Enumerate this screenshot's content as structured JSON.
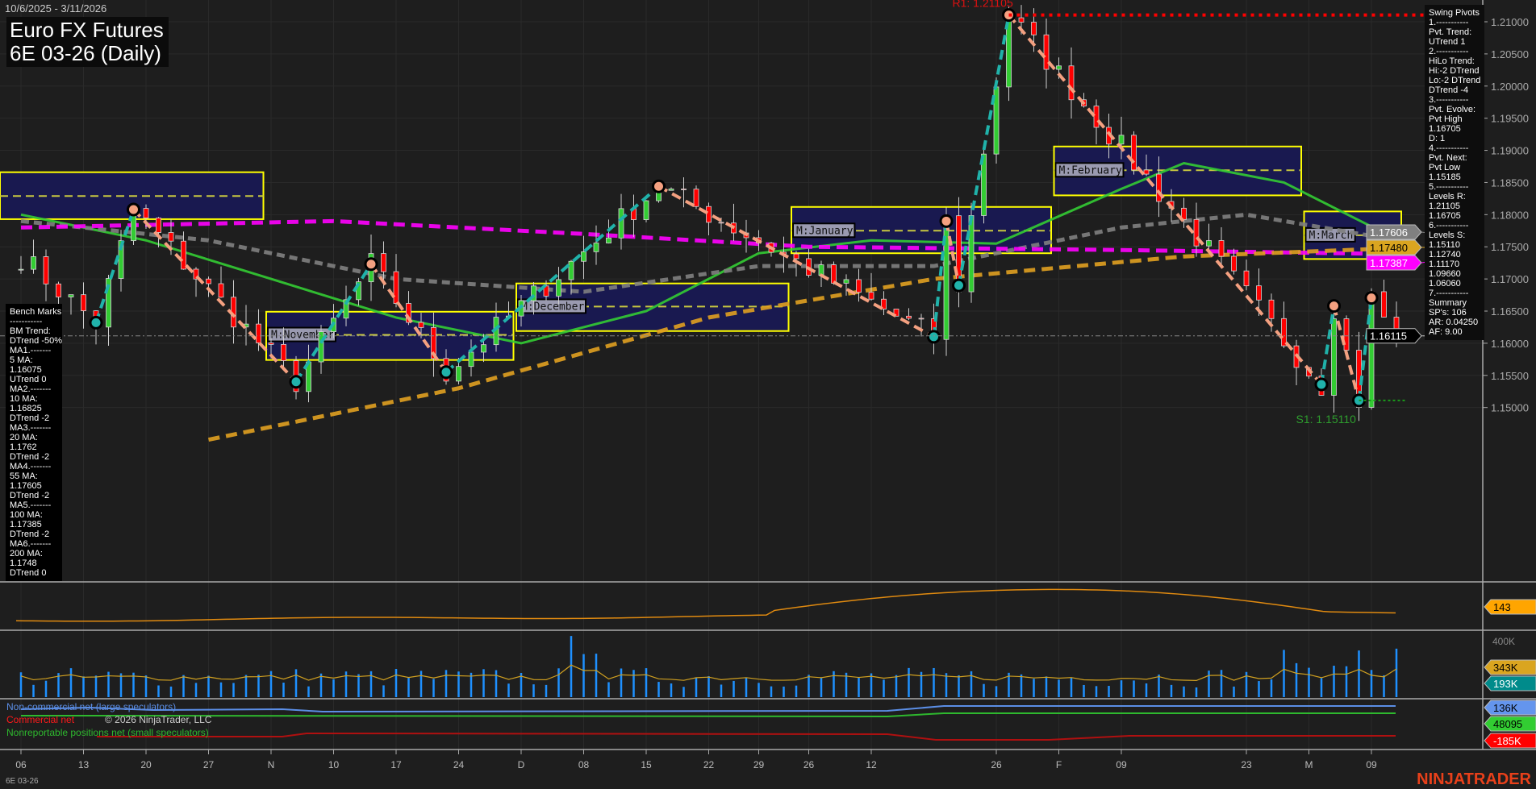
{
  "header": {
    "date_range": "10/6/2025 - 3/11/2026",
    "title": "Euro FX Futures",
    "subtitle": "6E 03-26 (Daily)"
  },
  "swing_pivots": {
    "lines": [
      "Swing Pivots",
      "1.-----------",
      "Pvt. Trend:",
      "UTrend 1",
      "2.-----------",
      "HiLo Trend:",
      "Hi:-2 DTrend",
      "Lo:-2 DTrend",
      "DTrend -4",
      "3.-----------",
      "Pvt. Evolve:",
      "Pvt High",
      "1.16705",
      "D: 1",
      "4.-----------",
      "Pvt. Next:",
      "Pvt Low",
      "1.15185",
      "5.-----------",
      "Levels R:",
      "1.21105",
      "1.16705",
      "6.-----------",
      "Levels S:",
      "1.15110",
      "1.12740",
      "1.11170",
      "1.09660",
      "1.06060",
      "7.-----------",
      "Summary",
      "SP's: 106",
      "AR: 0.04250",
      "AF: 9.00"
    ]
  },
  "bench_marks": {
    "lines": [
      "Bench Marks",
      "-----------",
      "BM Trend:",
      "DTrend -50%",
      "MA1.-------",
      "5 MA:",
      "1.16075",
      "UTrend 0",
      "MA2.-------",
      "10 MA:",
      "1.16825",
      "DTrend -2",
      "MA3.-------",
      "20 MA:",
      "1.1762",
      "DTrend -2",
      "MA4.-------",
      "55 MA:",
      "1.17605",
      "DTrend -2",
      "MA5.-------",
      "100 MA:",
      "1.17385",
      "DTrend -2",
      "MA6.-------",
      "200 MA:",
      "1.1748",
      "DTrend 0"
    ]
  },
  "legend": {
    "noncommercial": "Non-commercial net (large speculators)",
    "commercial": "Commercial net",
    "nonreportable": "Nonreportable positions net (small speculators)",
    "copyright": "© 2026 NinjaTrader, LLC"
  },
  "footer": {
    "symbol": "6E 03-26",
    "logo": "NINJATRADER"
  },
  "colors": {
    "background": "#1e1e1e",
    "up": "#33cc33",
    "down": "#ff0000",
    "zigzag_up": "#20b2aa",
    "zigzag_down": "#f4a080",
    "ma20": "#33cc33",
    "ma55": "#808080",
    "ma100": "#ff00ff",
    "ma200": "#e0a020",
    "month_box": "#191950",
    "month_border": "#ffff00",
    "volume": "#1e90ff"
  },
  "chart_data": {
    "type": "candlestick",
    "ylim": [
      1.147,
      1.2145
    ],
    "y_ticks": [
      1.15,
      1.155,
      1.16,
      1.165,
      1.17,
      1.175,
      1.18,
      1.185,
      1.19,
      1.195,
      1.2,
      1.205,
      1.21
    ],
    "x_ticks": [
      {
        "label": "06",
        "date": "2025-10-06"
      },
      {
        "label": "13",
        "date": "2025-10-13"
      },
      {
        "label": "20",
        "date": "2025-10-20"
      },
      {
        "label": "27",
        "date": "2025-10-27"
      },
      {
        "label": "N",
        "date": "2025-11-03"
      },
      {
        "label": "10",
        "date": "2025-11-10"
      },
      {
        "label": "17",
        "date": "2025-11-17"
      },
      {
        "label": "24",
        "date": "2025-11-24"
      },
      {
        "label": "D",
        "date": "2025-12-01"
      },
      {
        "label": "08",
        "date": "2025-12-08"
      },
      {
        "label": "15",
        "date": "2025-12-15"
      },
      {
        "label": "22",
        "date": "2025-12-22"
      },
      {
        "label": "29",
        "date": "2025-12-29"
      },
      {
        "label": "26",
        "date": "2026-01-05"
      },
      {
        "label": "12",
        "date": "2026-01-12"
      },
      {
        "label": "26",
        "date": "2026-01-26"
      },
      {
        "label": "F",
        "date": "2026-02-02"
      },
      {
        "label": "09",
        "date": "2026-02-09"
      },
      {
        "label": "23",
        "date": "2026-02-23"
      },
      {
        "label": "M",
        "date": "2026-03-02"
      },
      {
        "label": "09",
        "date": "2026-03-09"
      }
    ],
    "swing_pivots": [
      {
        "date": "2025-10-06",
        "price": 1.1735
      },
      {
        "date": "2025-10-14",
        "price": 1.1632
      },
      {
        "date": "2025-10-17",
        "price": 1.1808
      },
      {
        "date": "2025-11-05",
        "price": 1.154
      },
      {
        "date": "2025-11-13",
        "price": 1.1723
      },
      {
        "date": "2025-11-21",
        "price": 1.1555
      },
      {
        "date": "2025-12-16",
        "price": 1.1844
      },
      {
        "date": "2026-01-19",
        "price": 1.161
      },
      {
        "date": "2026-01-20",
        "price": 1.179
      },
      {
        "date": "2026-01-21",
        "price": 1.169
      },
      {
        "date": "2026-01-27",
        "price": 1.21105
      },
      {
        "date": "2026-03-03",
        "price": 1.1536
      },
      {
        "date": "2026-03-04",
        "price": 1.1658
      },
      {
        "date": "2026-03-06",
        "price": 1.1511
      },
      {
        "date": "2026-03-09",
        "price": 1.16705
      },
      {
        "date": "2026-03-11",
        "price": 1.16115
      }
    ],
    "monthly_boxes": [
      {
        "label": "",
        "start": "2025-10-01",
        "end": "2025-10-31",
        "high": 1.1866,
        "low": 1.1793,
        "mid": 1.1829
      },
      {
        "label": "M:November",
        "start": "2025-11-03",
        "end": "2025-11-28",
        "high": 1.1649,
        "low": 1.1574,
        "mid": 1.1613
      },
      {
        "label": "M:December",
        "start": "2025-12-01",
        "end": "2025-12-31",
        "high": 1.1693,
        "low": 1.1619,
        "mid": 1.1657
      },
      {
        "label": "M:January",
        "start": "2026-01-02",
        "end": "2026-01-30",
        "high": 1.1812,
        "low": 1.174,
        "mid": 1.1775
      },
      {
        "label": "M:February",
        "start": "2026-02-02",
        "end": "2026-02-27",
        "high": 1.1906,
        "low": 1.183,
        "mid": 1.1869
      },
      {
        "label": "M:March",
        "start": "2026-03-02",
        "end": "2026-03-11",
        "high": 1.1805,
        "low": 1.1731,
        "mid": 1.1768
      }
    ],
    "moving_averages": [
      {
        "name": "20 MA",
        "color": "#33cc33",
        "dash": "",
        "points": [
          [
            "2025-10-06",
            1.18
          ],
          [
            "2025-10-20",
            1.176
          ],
          [
            "2025-11-03",
            1.17
          ],
          [
            "2025-11-17",
            1.164
          ],
          [
            "2025-12-01",
            1.16
          ],
          [
            "2025-12-15",
            1.165
          ],
          [
            "2025-12-29",
            1.174
          ],
          [
            "2026-01-12",
            1.176
          ],
          [
            "2026-01-26",
            1.1755
          ],
          [
            "2026-02-09",
            1.184
          ],
          [
            "2026-02-16",
            1.188
          ],
          [
            "2026-02-26",
            1.185
          ],
          [
            "2026-03-11",
            1.1762
          ]
        ]
      },
      {
        "name": "55 MA",
        "color": "#808080",
        "dash": "10,6",
        "points": [
          [
            "2025-10-06",
            1.179
          ],
          [
            "2025-10-27",
            1.176
          ],
          [
            "2025-11-17",
            1.17
          ],
          [
            "2025-12-08",
            1.168
          ],
          [
            "2025-12-29",
            1.172
          ],
          [
            "2026-01-19",
            1.172
          ],
          [
            "2026-02-09",
            1.178
          ],
          [
            "2026-02-23",
            1.18
          ],
          [
            "2026-03-11",
            1.17605
          ]
        ]
      },
      {
        "name": "100 MA",
        "color": "#ff00ff",
        "dash": "14,8",
        "points": [
          [
            "2025-10-06",
            1.178
          ],
          [
            "2025-11-10",
            1.179
          ],
          [
            "2025-12-08",
            1.177
          ],
          [
            "2026-01-05",
            1.175
          ],
          [
            "2026-02-09",
            1.1745
          ],
          [
            "2026-03-11",
            1.17387
          ]
        ]
      },
      {
        "name": "200 MA",
        "color": "#e0a020",
        "dash": "14,8",
        "points": [
          [
            "2025-10-27",
            1.145
          ],
          [
            "2025-11-24",
            1.153
          ],
          [
            "2025-12-22",
            1.164
          ],
          [
            "2026-01-19",
            1.17
          ],
          [
            "2026-02-16",
            1.1735
          ],
          [
            "2026-03-11",
            1.1748
          ]
        ]
      }
    ],
    "resistance": {
      "label": "R1: 1.21105",
      "price": 1.21105,
      "from": "2026-01-27"
    },
    "support": {
      "label": "S1: 1.15110",
      "price": 1.1511,
      "from": "2026-03-06"
    },
    "axis_markers": [
      {
        "value": "1.17606",
        "color": "#808080",
        "text": "#ffffff"
      },
      {
        "value": "1.17480",
        "color": "#daa520",
        "text": "#000000"
      },
      {
        "value": "1.17387",
        "color": "#ff00ff",
        "text": "#ffffff"
      },
      {
        "value": "1.16115",
        "color": "#000000",
        "text": "#ffffff"
      }
    ],
    "panels": [
      {
        "name": "indicator",
        "marker": "143",
        "marker_color": "#ffa500"
      },
      {
        "name": "volume",
        "tick": "400K",
        "markers": [
          {
            "value": "343K",
            "color": "#daa520",
            "text": "#000"
          },
          {
            "value": "193K",
            "color": "#008b8b",
            "text": "#fff"
          }
        ]
      },
      {
        "name": "cot",
        "markers": [
          {
            "value": "136K",
            "color": "#6495ed",
            "text": "#000"
          },
          {
            "value": "48095",
            "color": "#32cd32",
            "text": "#000"
          },
          {
            "value": "-185K",
            "color": "#ff0000",
            "text": "#fff"
          }
        ]
      }
    ]
  }
}
